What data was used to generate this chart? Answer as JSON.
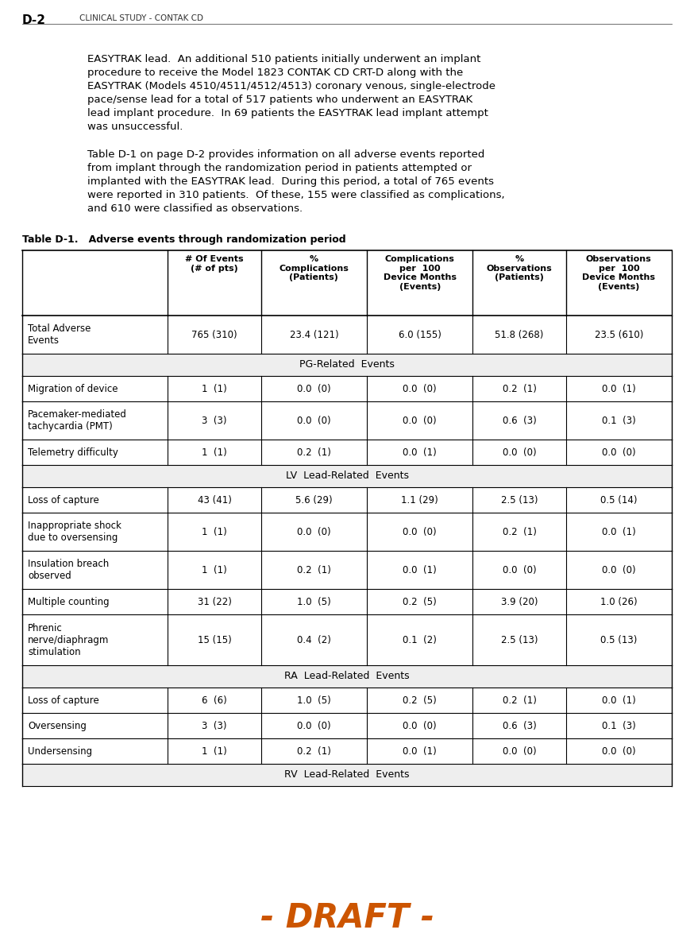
{
  "page_label": "D-2",
  "page_header": "CLINICAL STUDY - CONTAK CD",
  "body_paragraphs": [
    [
      "EASYTRAK lead.  An additional 510 patients initially underwent an implant",
      "procedure to receive the Model 1823 CONTAK CD CRT-D along with the",
      "EASYTRAK (Models 4510/4511/4512/4513) coronary venous, single-electrode",
      "pace/sense lead for a total of 517 patients who underwent an EASYTRAK",
      "lead implant procedure.  In 69 patients the EASYTRAK lead implant attempt",
      "was unsuccessful."
    ],
    [
      "Table D-1 on page D-2 provides information on all adverse events reported",
      "from implant through the randomization period in patients attempted or",
      "implanted with the EASYTRAK lead.  During this period, a total of 765 events",
      "were reported in 310 patients.  Of these, 155 were classified as complications,",
      "and 610 were classified as observations."
    ]
  ],
  "table_title": "Table D-1.   Adverse events through randomization period",
  "col_headers": [
    "# Of Events\n(# of pts)",
    "%\nComplications\n(Patients)",
    "Complications\nper  100\nDevice Months\n(Events)",
    "%\nObservations\n(Patients)",
    "Observations\nper  100\nDevice Months\n(Events)"
  ],
  "section_rows": [
    {
      "type": "data",
      "label": "Total Adverse\nEvents",
      "values": [
        "765 (310)",
        "23.4 (121)",
        "6.0 (155)",
        "51.8 (268)",
        "23.5 (610)"
      ]
    },
    {
      "type": "section",
      "label": "PG-Related  Events"
    },
    {
      "type": "data",
      "label": "Migration of device",
      "values": [
        "1  (1)",
        "0.0  (0)",
        "0.0  (0)",
        "0.2  (1)",
        "0.0  (1)"
      ]
    },
    {
      "type": "data",
      "label": "Pacemaker-mediated\ntachycardia (PMT)",
      "values": [
        "3  (3)",
        "0.0  (0)",
        "0.0  (0)",
        "0.6  (3)",
        "0.1  (3)"
      ]
    },
    {
      "type": "data",
      "label": "Telemetry difficulty",
      "values": [
        "1  (1)",
        "0.2  (1)",
        "0.0  (1)",
        "0.0  (0)",
        "0.0  (0)"
      ]
    },
    {
      "type": "section",
      "label": "LV  Lead-Related  Events"
    },
    {
      "type": "data",
      "label": "Loss of capture",
      "values": [
        "43 (41)",
        "5.6 (29)",
        "1.1 (29)",
        "2.5 (13)",
        "0.5 (14)"
      ]
    },
    {
      "type": "data",
      "label": "Inappropriate shock\ndue to oversensing",
      "values": [
        "1  (1)",
        "0.0  (0)",
        "0.0  (0)",
        "0.2  (1)",
        "0.0  (1)"
      ]
    },
    {
      "type": "data",
      "label": "Insulation breach\nobserved",
      "values": [
        "1  (1)",
        "0.2  (1)",
        "0.0  (1)",
        "0.0  (0)",
        "0.0  (0)"
      ]
    },
    {
      "type": "data",
      "label": "Multiple counting",
      "values": [
        "31 (22)",
        "1.0  (5)",
        "0.2  (5)",
        "3.9 (20)",
        "1.0 (26)"
      ]
    },
    {
      "type": "data",
      "label": "Phrenic\nnerve/diaphragm\nstimulation",
      "values": [
        "15 (15)",
        "0.4  (2)",
        "0.1  (2)",
        "2.5 (13)",
        "0.5 (13)"
      ]
    },
    {
      "type": "section",
      "label": "RA  Lead-Related  Events"
    },
    {
      "type": "data",
      "label": "Loss of capture",
      "values": [
        "6  (6)",
        "1.0  (5)",
        "0.2  (5)",
        "0.2  (1)",
        "0.0  (1)"
      ]
    },
    {
      "type": "data",
      "label": "Oversensing",
      "values": [
        "3  (3)",
        "0.0  (0)",
        "0.0  (0)",
        "0.6  (3)",
        "0.1  (3)"
      ]
    },
    {
      "type": "data",
      "label": "Undersensing",
      "values": [
        "1  (1)",
        "0.2  (1)",
        "0.0  (1)",
        "0.0  (0)",
        "0.0  (0)"
      ]
    },
    {
      "type": "section",
      "label": "RV  Lead-Related  Events"
    }
  ],
  "draft_text": "- DRAFT -",
  "draft_color": "#CC5500",
  "bg_color": "#ffffff"
}
